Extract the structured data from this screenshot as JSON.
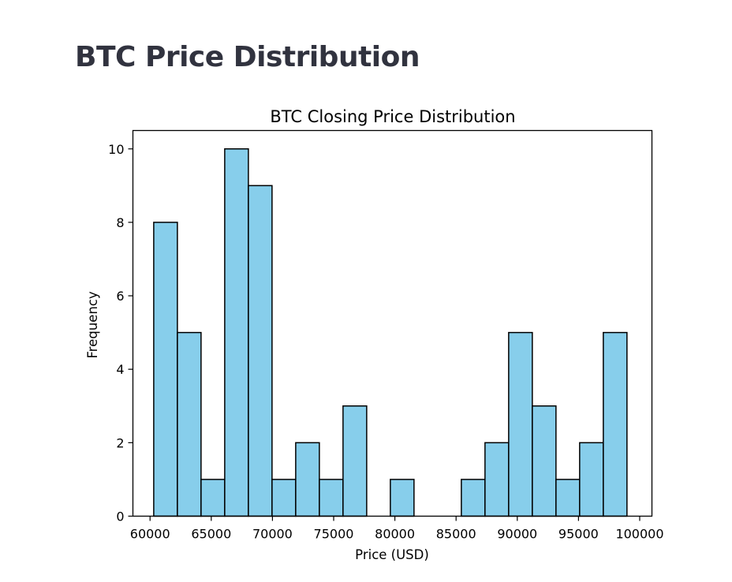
{
  "page": {
    "title": "BTC Price Distribution"
  },
  "chart_data": {
    "type": "bar",
    "title": "BTC Closing Price Distribution",
    "xlabel": "Price (USD)",
    "ylabel": "Frequency",
    "xlim": [
      58600,
      101000
    ],
    "ylim": [
      0,
      10.5
    ],
    "xticks": [
      60000,
      65000,
      70000,
      75000,
      80000,
      85000,
      90000,
      95000,
      100000
    ],
    "yticks": [
      0,
      2,
      4,
      6,
      8,
      10
    ],
    "grid": false,
    "bar_color": "#87ceeb",
    "edge_color": "#000000",
    "bins": [
      {
        "x0": 60300,
        "x1": 62233,
        "count": 8
      },
      {
        "x0": 62233,
        "x1": 64166,
        "count": 5
      },
      {
        "x0": 64166,
        "x1": 66099,
        "count": 1
      },
      {
        "x0": 66099,
        "x1": 68032,
        "count": 10
      },
      {
        "x0": 68032,
        "x1": 69965,
        "count": 9
      },
      {
        "x0": 69965,
        "x1": 71898,
        "count": 1
      },
      {
        "x0": 71898,
        "x1": 73831,
        "count": 2
      },
      {
        "x0": 73831,
        "x1": 75764,
        "count": 1
      },
      {
        "x0": 75764,
        "x1": 77697,
        "count": 3
      },
      {
        "x0": 77697,
        "x1": 79630,
        "count": 0
      },
      {
        "x0": 79630,
        "x1": 81563,
        "count": 1
      },
      {
        "x0": 81563,
        "x1": 83496,
        "count": 0
      },
      {
        "x0": 83496,
        "x1": 85429,
        "count": 0
      },
      {
        "x0": 85429,
        "x1": 87362,
        "count": 1
      },
      {
        "x0": 87362,
        "x1": 89295,
        "count": 2
      },
      {
        "x0": 89295,
        "x1": 91228,
        "count": 5
      },
      {
        "x0": 91228,
        "x1": 93161,
        "count": 3
      },
      {
        "x0": 93161,
        "x1": 95094,
        "count": 1
      },
      {
        "x0": 95094,
        "x1": 97027,
        "count": 2
      },
      {
        "x0": 97027,
        "x1": 98960,
        "count": 5
      }
    ]
  }
}
